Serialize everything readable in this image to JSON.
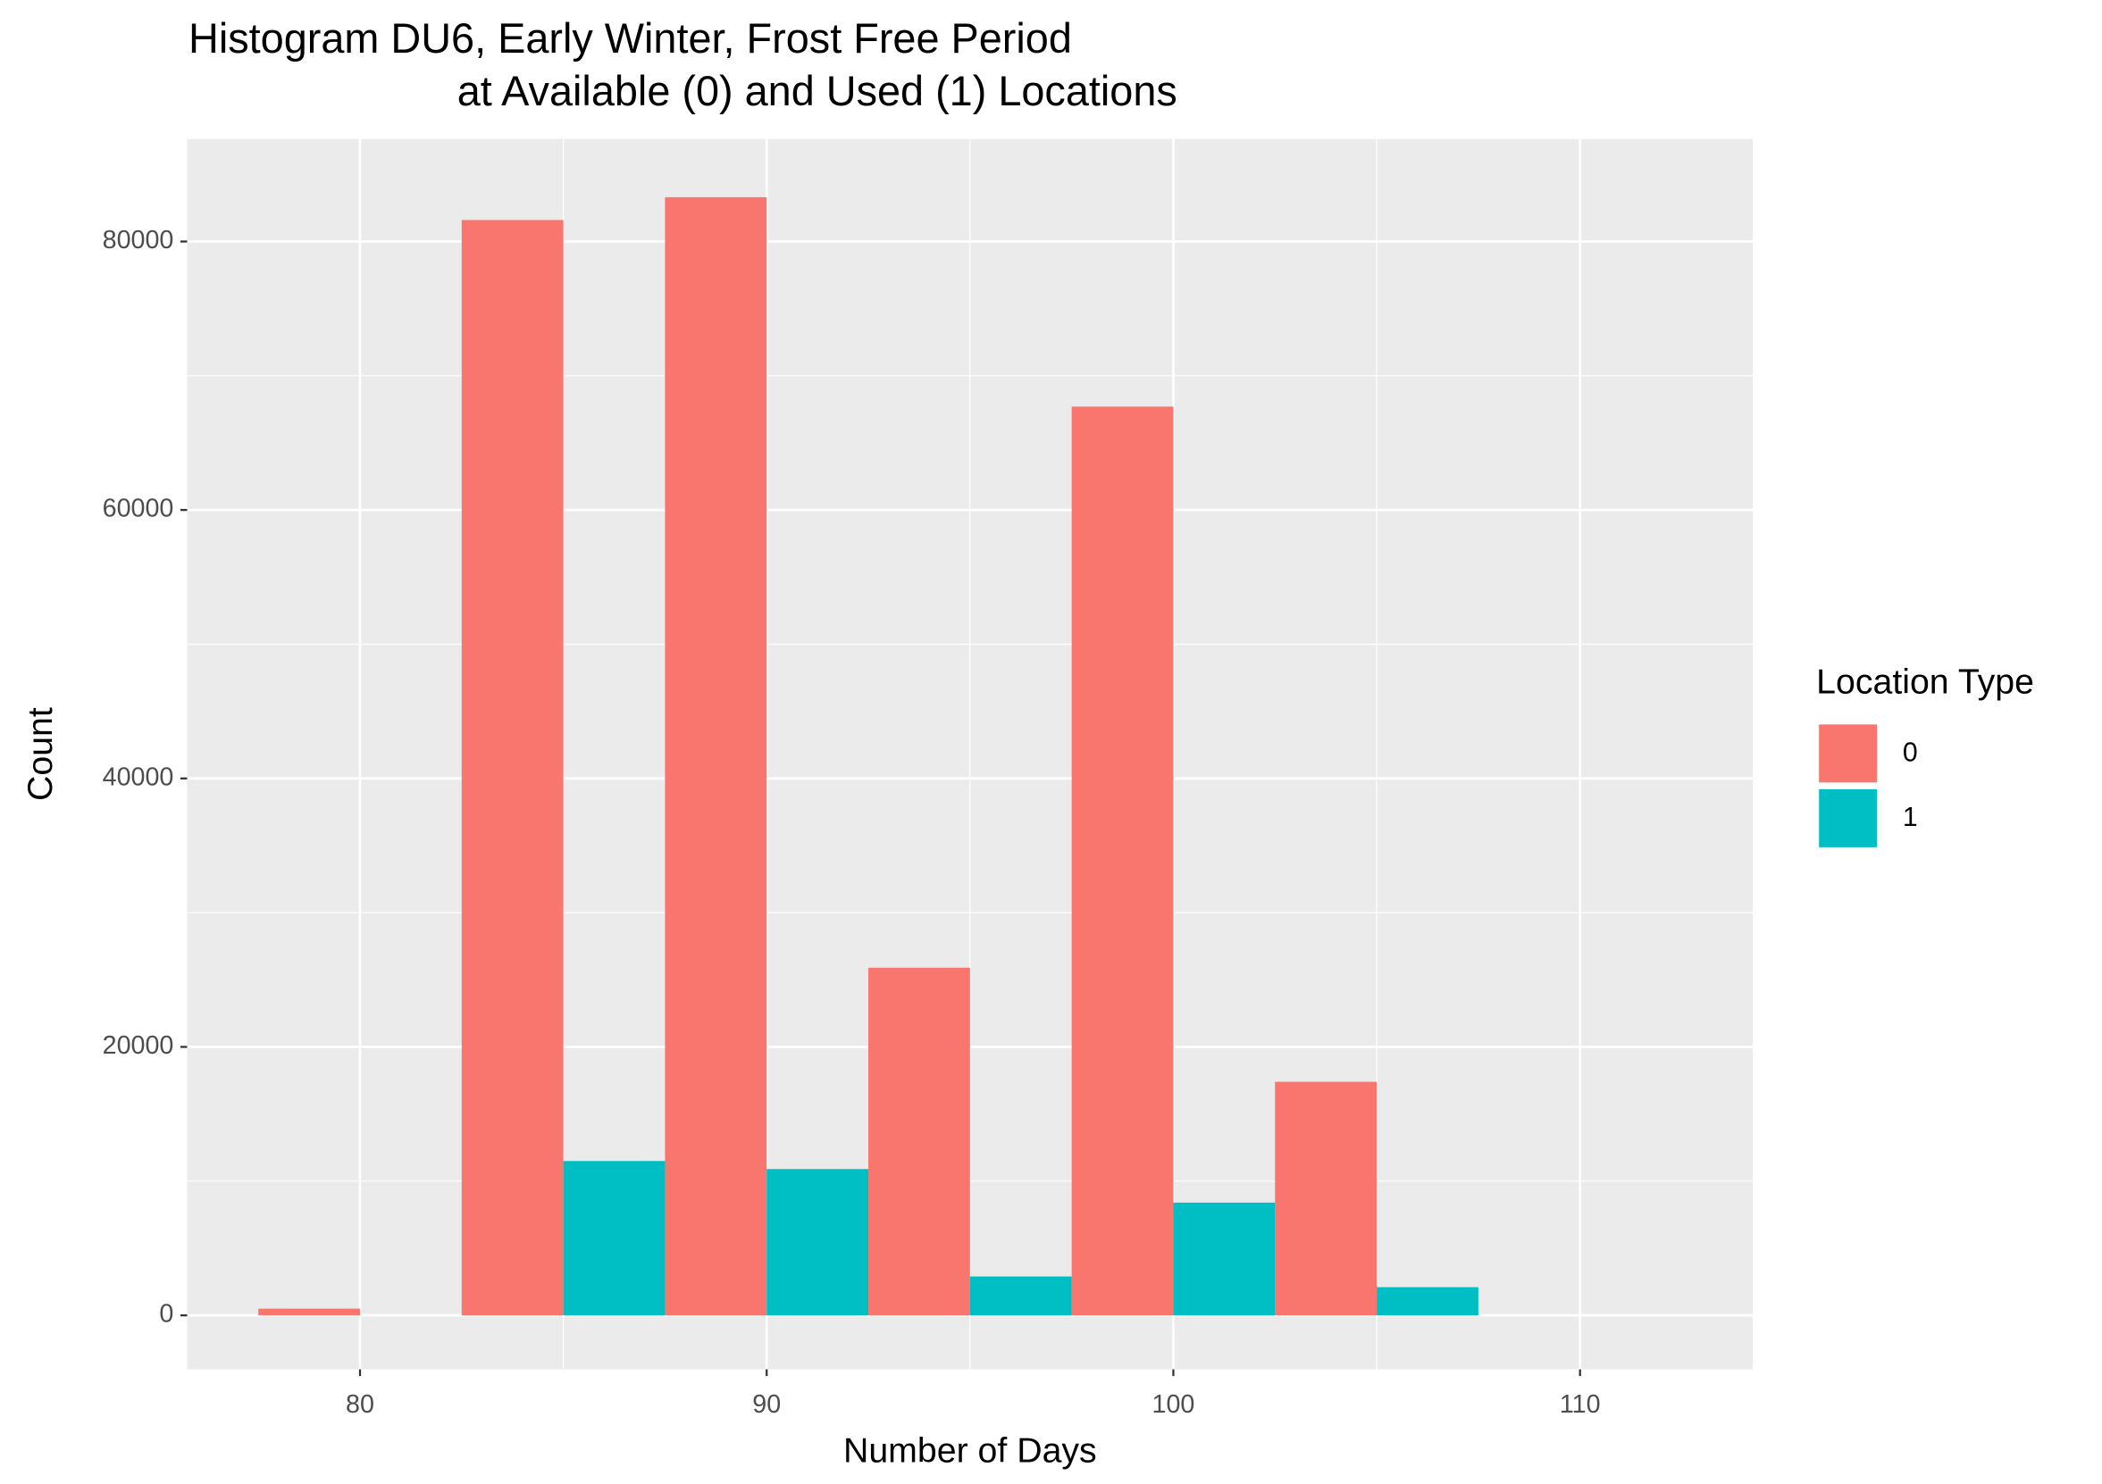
{
  "chart_data": {
    "type": "histogram",
    "title": [
      "Histogram DU6, Early Winter, Frost Free Period",
      "at Available (0) and Used (1) Locations"
    ],
    "x_label": "Number of Days",
    "y_label": "Count",
    "bins": [
      77.5,
      82.5,
      87.5,
      92.5,
      97.5,
      102.5,
      107.5,
      112.5
    ],
    "series": [
      {
        "name": "0",
        "color": "#f8766d",
        "values": [
          500,
          81600,
          83300,
          25900,
          67700,
          17400,
          0
        ]
      },
      {
        "name": "1",
        "color": "#00bfc4",
        "values": [
          0,
          11500,
          10900,
          2900,
          8400,
          2100,
          0
        ]
      }
    ],
    "legend_title": "Location Type",
    "legend_position": "right",
    "xlim": [
      75.75,
      114.25
    ],
    "xticks": [
      80,
      90,
      100,
      110
    ],
    "minor_xticks": [
      85,
      95,
      105
    ],
    "ylim": [
      -4020,
      87640
    ],
    "yticks": [
      0,
      20000,
      40000,
      60000,
      80000
    ],
    "minor_yticks": [
      10000,
      30000,
      50000,
      70000
    ],
    "grid": true,
    "panel_color": "#ebebeb"
  }
}
